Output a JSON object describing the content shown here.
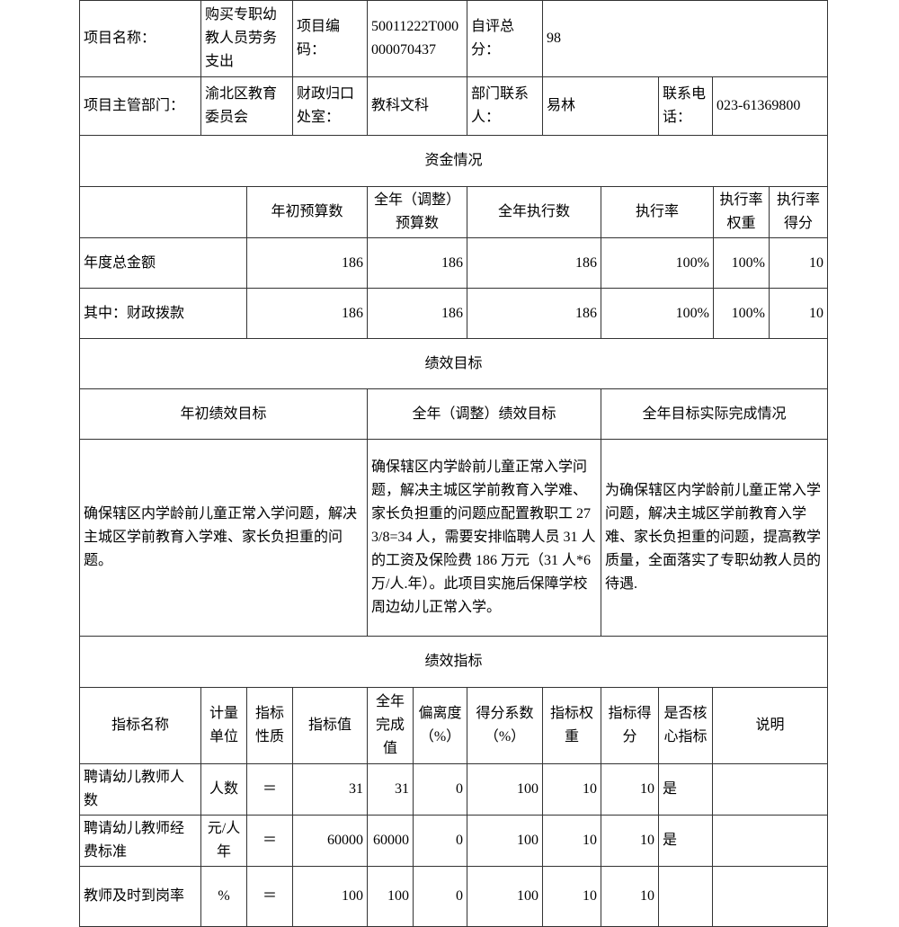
{
  "info": {
    "project_name_label": "项目名称：",
    "project_name": "购买专职幼教人员劳务支出",
    "project_code_label": "项目编码：",
    "project_code": "50011222T000000070437",
    "self_score_label": "自评总分：",
    "self_score": "98",
    "dept_label": "项目主管部门：",
    "dept": "渝北区教育委员会",
    "finance_office_label": "财政归口处室：",
    "finance_office": "教科文科",
    "contact_label": "部门联系人：",
    "contact": "易林",
    "phone_label": "联系电话：",
    "phone": "023-61369800"
  },
  "funds": {
    "section_title": "资金情况",
    "headers": [
      "",
      "年初预算数",
      "全年（调整）预算数",
      "全年执行数",
      "执行率",
      "执行率权重",
      "执行率得分"
    ],
    "rows": [
      [
        "年度总金额",
        "186",
        "186",
        "186",
        "100%",
        "100%",
        "10"
      ],
      [
        "其中：财政拨款",
        "186",
        "186",
        "186",
        "100%",
        "100%",
        "10"
      ]
    ]
  },
  "goals": {
    "section_title": "绩效目标",
    "headers": [
      "年初绩效目标",
      "全年（调整）绩效目标",
      "全年目标实际完成情况"
    ],
    "values": [
      "确保辖区内学龄前儿童正常入学问题，解决主城区学前教育入学难、家长负担重的问题。",
      "确保辖区内学龄前儿童正常入学问题，解决主城区学前教育入学难、家长负担重的问题应配置教职工 273/8=34 人，需要安排临聘人员 31 人的工资及保险费 186 万元（31 人*6 万/人.年）。此项目实施后保障学校周边幼儿正常入学。",
      "为确保辖区内学龄前儿童正常入学问题，解决主城区学前教育入学难、家长负担重的问题，提高教学质量，全面落实了专职幼教人员的待遇."
    ]
  },
  "indicators": {
    "section_title": "绩效指标",
    "headers": [
      "指标名称",
      "计量单位",
      "指标性质",
      "指标值",
      "全年完成值",
      "偏离度（%）",
      "得分系数（%）",
      "指标权重",
      "指标得分",
      "是否核心指标",
      "说明"
    ],
    "rows": [
      [
        "聘请幼儿教师人数",
        "人数",
        "＝",
        "31",
        "31",
        "0",
        "100",
        "10",
        "10",
        "是",
        ""
      ],
      [
        "聘请幼儿教师经费标准",
        "元/人年",
        "＝",
        "60000",
        "60000",
        "0",
        "100",
        "10",
        "10",
        "是",
        ""
      ],
      [
        "教师及时到岗率",
        "%",
        "＝",
        "100",
        "100",
        "0",
        "100",
        "10",
        "10",
        "",
        ""
      ]
    ]
  }
}
